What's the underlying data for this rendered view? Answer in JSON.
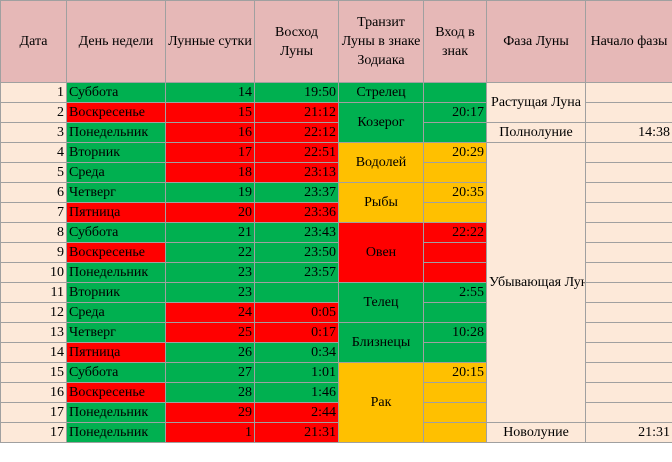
{
  "headers": {
    "date": "Дата",
    "weekday": "День недели",
    "lunar_day": "Лунные сутки",
    "moonrise": "Восход Луны",
    "transit": "Транзит Луны в знаке Зодиака",
    "entry": "Вход в знак",
    "phase": "Фаза Луны",
    "phase_start": "Начало фазы"
  },
  "rows": [
    {
      "date": "1",
      "weekday": "Суббота",
      "lunar_day": "14",
      "moonrise": "19:50"
    },
    {
      "date": "2",
      "weekday": "Воскресенье",
      "lunar_day": "15",
      "moonrise": "21:12"
    },
    {
      "date": "3",
      "weekday": "Понедельник",
      "lunar_day": "16",
      "moonrise": "22:12"
    },
    {
      "date": "4",
      "weekday": "Вторник",
      "lunar_day": "17",
      "moonrise": "22:51"
    },
    {
      "date": "5",
      "weekday": "Среда",
      "lunar_day": "18",
      "moonrise": "23:13"
    },
    {
      "date": "6",
      "weekday": "Четверг",
      "lunar_day": "19",
      "moonrise": "23:37"
    },
    {
      "date": "7",
      "weekday": "Пятница",
      "lunar_day": "20",
      "moonrise": "23:36"
    },
    {
      "date": "8",
      "weekday": "Суббота",
      "lunar_day": "21",
      "moonrise": "23:43"
    },
    {
      "date": "9",
      "weekday": "Воскресенье",
      "lunar_day": "22",
      "moonrise": "23:50"
    },
    {
      "date": "10",
      "weekday": "Понедельник",
      "lunar_day": "23",
      "moonrise": "23:57"
    },
    {
      "date": "11",
      "weekday": "Вторник",
      "lunar_day": "23",
      "moonrise": ""
    },
    {
      "date": "12",
      "weekday": "Среда",
      "lunar_day": "24",
      "moonrise": "0:05"
    },
    {
      "date": "13",
      "weekday": "Четверг",
      "lunar_day": "25",
      "moonrise": "0:17"
    },
    {
      "date": "14",
      "weekday": "Пятница",
      "lunar_day": "26",
      "moonrise": "0:34"
    },
    {
      "date": "15",
      "weekday": "Суббота",
      "lunar_day": "27",
      "moonrise": "1:01"
    },
    {
      "date": "16",
      "weekday": "Воскресенье",
      "lunar_day": "28",
      "moonrise": "1:46"
    },
    {
      "date": "17",
      "weekday": "Понедельник",
      "lunar_day": "29",
      "moonrise": "2:44"
    },
    {
      "date": "17",
      "weekday": "Понедельник",
      "lunar_day": "1",
      "moonrise": "21:31"
    }
  ],
  "zodiac": {
    "sagittarius": "Стрелец",
    "capricorn": "Козерог",
    "aquarius": "Водолей",
    "pisces": "Рыбы",
    "aries": "Овен",
    "taurus": "Телец",
    "gemini": "Близнецы",
    "cancer": "Рак"
  },
  "entries": {
    "capricorn": "20:17",
    "aquarius": "20:29",
    "pisces": "20:35",
    "aries": "22:22",
    "taurus": "2:55",
    "gemini": "10:28",
    "cancer": "20:15"
  },
  "phases": {
    "waxing": "Растущая Луна",
    "full": "Полнолуние",
    "full_start": "14:38",
    "waning": "Убывающая Луна",
    "new": "Новолуние",
    "new_start": "21:31"
  },
  "colors": {
    "header": "#e6b8b7",
    "light": "#fde9d9",
    "green": "#00b050",
    "red": "#ff0000",
    "orange": "#ffc000",
    "border": "#a0a0a0"
  }
}
